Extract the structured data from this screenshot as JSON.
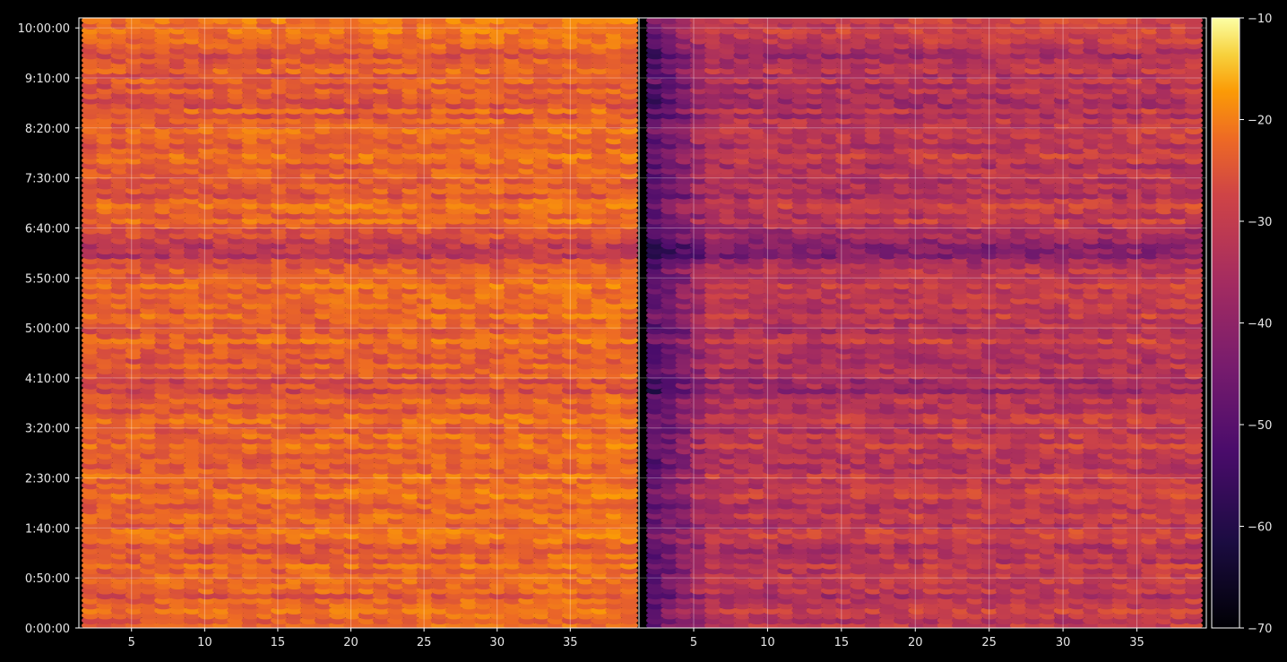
{
  "chart_data": {
    "type": "heatmap",
    "title": "",
    "xlabel": "",
    "ylabel": "",
    "colormap": "inferno",
    "grid": true,
    "panels": [
      {
        "name": "",
        "xlim": [
          1.4,
          39.7
        ],
        "xticks": [
          5,
          10,
          15,
          20,
          25,
          30,
          35
        ],
        "brightness_offset": 6
      },
      {
        "name": "",
        "xlim": [
          1.3,
          39.7
        ],
        "xticks": [
          5,
          10,
          15,
          20,
          25,
          30,
          35,
          40
        ],
        "brightness_offset": -4
      }
    ],
    "yaxis": {
      "range_minutes": [
        0,
        610
      ],
      "tick_minutes": [
        0,
        50,
        100,
        150,
        200,
        250,
        300,
        350,
        400,
        450,
        500,
        550,
        600
      ],
      "tick_labels": [
        "0:00:00",
        "0:50:00",
        "1:40:00",
        "2:30:00",
        "3:20:00",
        "4:10:00",
        "5:00:00",
        "5:50:00",
        "6:40:00",
        "7:30:00",
        "8:20:00",
        "9:10:00",
        "10:00:00"
      ]
    },
    "row_profile": {
      "note": "mean level per time bin (dB) estimated from color",
      "time_minutes": [
        0,
        20,
        40,
        60,
        80,
        100,
        120,
        140,
        160,
        180,
        200,
        220,
        240,
        260,
        280,
        300,
        320,
        340,
        360,
        380,
        400,
        420,
        440,
        460,
        480,
        500,
        520,
        540,
        560,
        580,
        600,
        610
      ],
      "level_db": [
        -33,
        -34,
        -35,
        -33,
        -34,
        -32,
        -33,
        -33,
        -32,
        -34,
        -33,
        -35,
        -37,
        -35,
        -34,
        -33,
        -31,
        -32,
        -36,
        -44,
        -35,
        -32,
        -36,
        -35,
        -33,
        -34,
        -35,
        -36,
        -34,
        -35,
        -33,
        -32
      ]
    },
    "colorbar": {
      "min": -70,
      "max": -10,
      "ticks": [
        -70,
        -60,
        -50,
        -40,
        -30,
        -20,
        -10
      ],
      "tick_labels": [
        "−70",
        "−60",
        "−50",
        "−40",
        "−30",
        "−20",
        "−10"
      ]
    }
  }
}
